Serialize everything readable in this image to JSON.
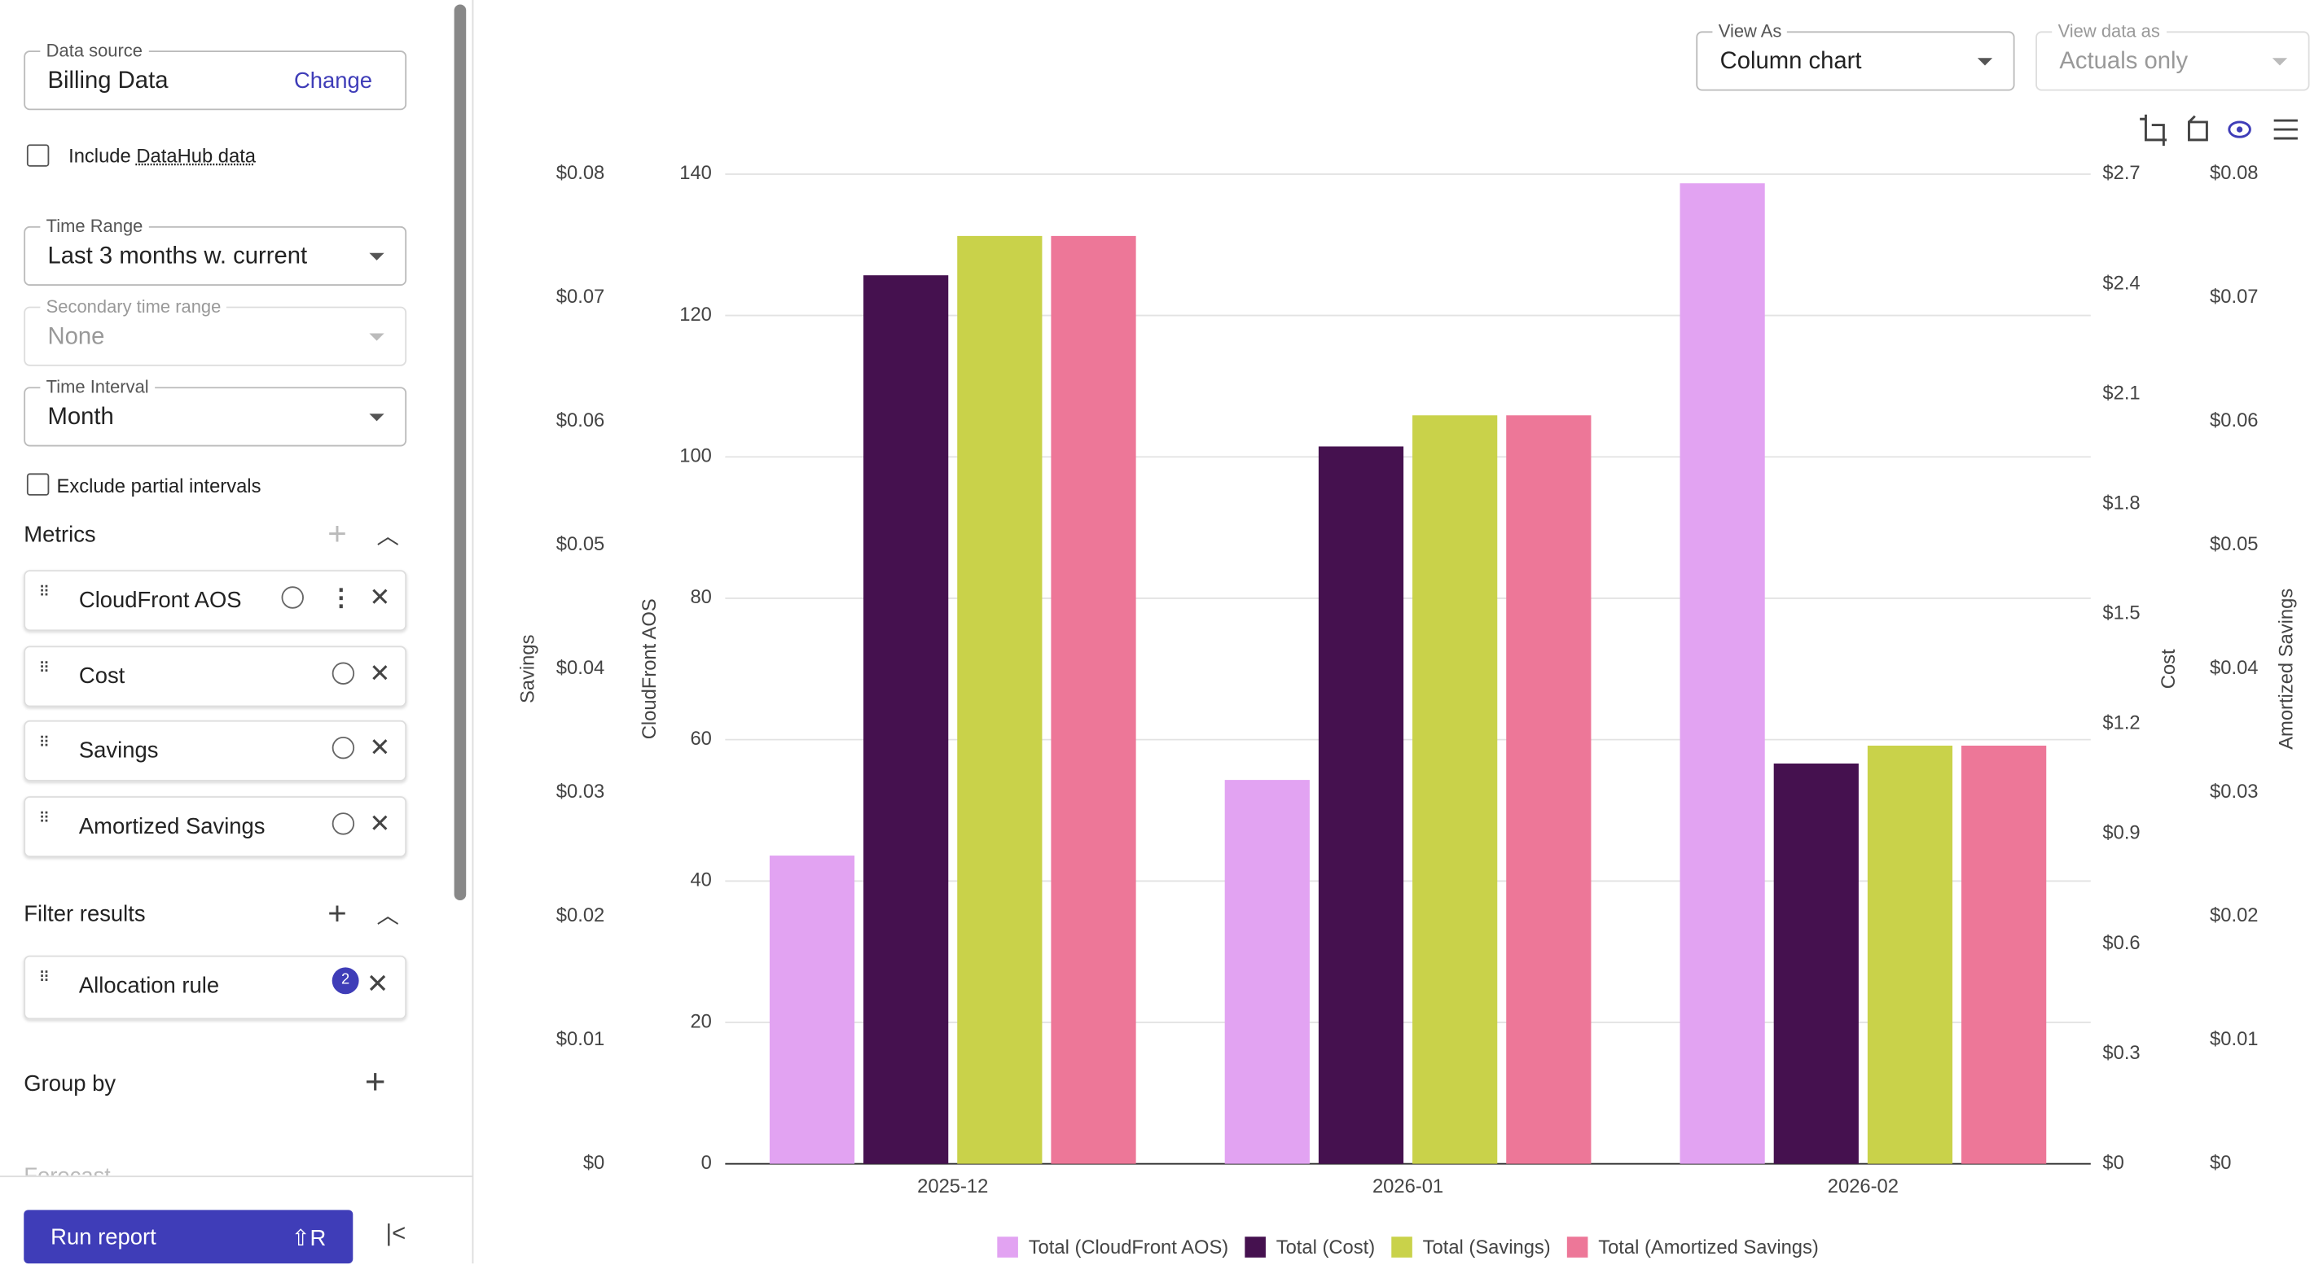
{
  "sidebar": {
    "data_source": {
      "label": "Data source",
      "value": "Billing Data",
      "action": "Change"
    },
    "include_prefix": "Include",
    "include_link": "DataHub data",
    "time_range": {
      "label": "Time Range",
      "value": "Last 3 months w. current"
    },
    "secondary_range": {
      "label": "Secondary time range",
      "value": "None"
    },
    "time_interval": {
      "label": "Time Interval",
      "value": "Month"
    },
    "exclude_partial": "Exclude partial intervals",
    "metrics_title": "Metrics",
    "metrics": [
      "CloudFront AOS",
      "Cost",
      "Savings",
      "Amortized Savings"
    ],
    "filter_title": "Filter results",
    "filters": [
      {
        "name": "Allocation rule",
        "count": 2
      }
    ],
    "group_by": "Group by",
    "forecast": "Forecast",
    "run": "Run report",
    "shortcut": "⇧R"
  },
  "toolbar": {
    "view_as": {
      "label": "View As",
      "value": "Column chart"
    },
    "view_data": {
      "label": "View data as",
      "value": "Actuals only"
    }
  },
  "chart_data": {
    "type": "bar",
    "categories": [
      "2025-12",
      "2026-01",
      "2026-02"
    ],
    "axes": [
      {
        "title": "Savings",
        "position": "left-outer",
        "ylim": [
          0,
          0.08
        ],
        "yticks": [
          {
            "value": 0,
            "label": "$0"
          },
          {
            "value": 0.01,
            "label": "$0.01"
          },
          {
            "value": 0.02,
            "label": "$0.02"
          },
          {
            "value": 0.03,
            "label": "$0.03"
          },
          {
            "value": 0.04,
            "label": "$0.04"
          },
          {
            "value": 0.05,
            "label": "$0.05"
          },
          {
            "value": 0.06,
            "label": "$0.06"
          },
          {
            "value": 0.07,
            "label": "$0.07"
          },
          {
            "value": 0.08,
            "label": "$0.08"
          }
        ]
      },
      {
        "title": "CloudFront AOS",
        "position": "left-inner",
        "grid": true,
        "ylim": [
          0,
          140
        ],
        "yticks": [
          0,
          20,
          40,
          60,
          80,
          100,
          120,
          140
        ]
      },
      {
        "title": "Cost",
        "position": "right-inner",
        "ylim": [
          0,
          2.7
        ],
        "yticks": [
          {
            "value": 0,
            "label": "$0"
          },
          {
            "value": 0.3,
            "label": "$0.3"
          },
          {
            "value": 0.6,
            "label": "$0.6"
          },
          {
            "value": 0.9,
            "label": "$0.9"
          },
          {
            "value": 1.2,
            "label": "$1.2"
          },
          {
            "value": 1.5,
            "label": "$1.5"
          },
          {
            "value": 1.8,
            "label": "$1.8"
          },
          {
            "value": 2.1,
            "label": "$2.1"
          },
          {
            "value": 2.4,
            "label": "$2.4"
          },
          {
            "value": 2.7,
            "label": "$2.7"
          }
        ]
      },
      {
        "title": "Amortized Savings",
        "position": "right-outer",
        "ylim": [
          0,
          0.08
        ],
        "yticks": [
          {
            "value": 0,
            "label": "$0"
          },
          {
            "value": 0.01,
            "label": "$0.01"
          },
          {
            "value": 0.02,
            "label": "$0.02"
          },
          {
            "value": 0.03,
            "label": "$0.03"
          },
          {
            "value": 0.04,
            "label": "$0.04"
          },
          {
            "value": 0.05,
            "label": "$0.05"
          },
          {
            "value": 0.06,
            "label": "$0.06"
          },
          {
            "value": 0.07,
            "label": "$0.07"
          },
          {
            "value": 0.08,
            "label": "$0.08"
          }
        ]
      }
    ],
    "series": [
      {
        "name": "Total (CloudFront AOS)",
        "color": "#e2a3f2",
        "axis": "CloudFront AOS",
        "values": [
          43.6,
          54.3,
          138.7
        ]
      },
      {
        "name": "Total (Cost)",
        "color": "#45114f",
        "axis": "Cost",
        "values": [
          2.424,
          1.957,
          1.092
        ]
      },
      {
        "name": "Total (Savings)",
        "color": "#c9d24a",
        "axis": "Savings",
        "values": [
          0.075,
          0.0605,
          0.0338
        ]
      },
      {
        "name": "Total (Amortized Savings)",
        "color": "#ed7798",
        "axis": "Amortized Savings",
        "values": [
          0.075,
          0.0605,
          0.0338
        ]
      }
    ]
  }
}
